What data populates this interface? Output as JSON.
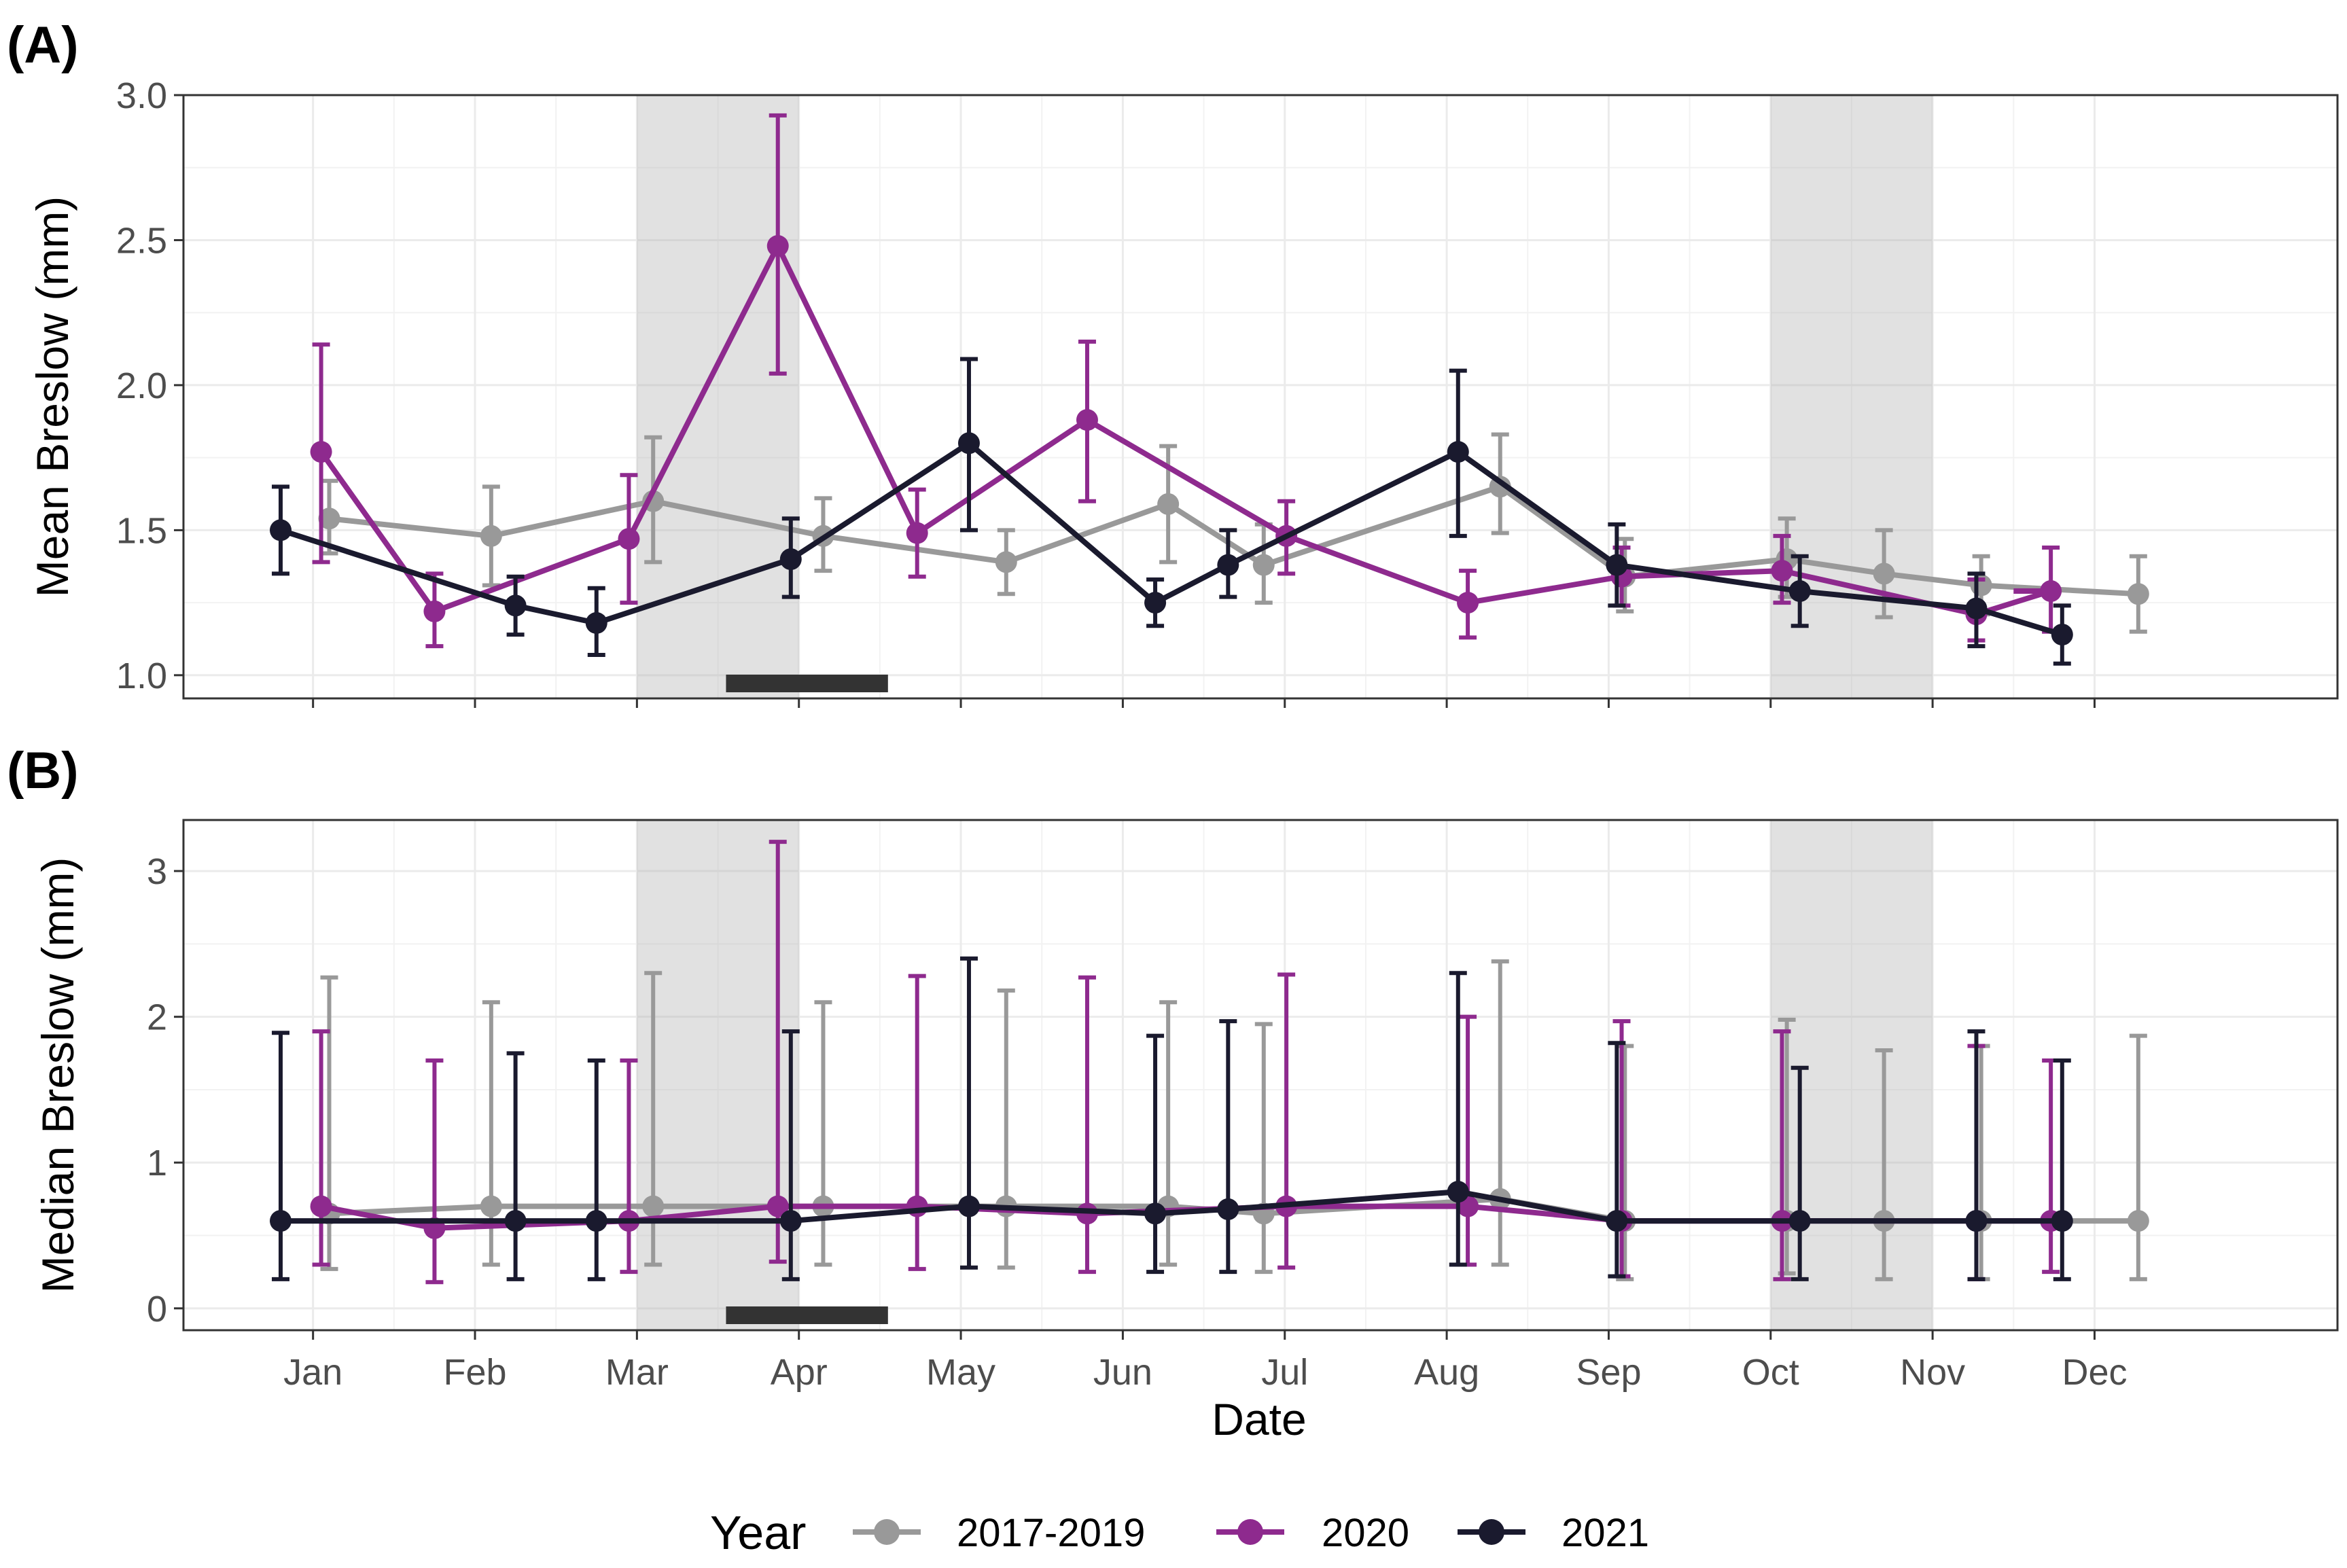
{
  "chart_data": {
    "type": "line",
    "xlabel": "Date",
    "legend": {
      "title": "Year",
      "position": "bottom"
    },
    "months": [
      "Jan",
      "Feb",
      "Mar",
      "Apr",
      "May",
      "Jun",
      "Jul",
      "Aug",
      "Sep",
      "Oct",
      "Nov",
      "Dec"
    ],
    "x_range": [
      -0.8,
      12.5
    ],
    "shaded_regions": [
      [
        2.0,
        3.0
      ],
      [
        9.0,
        10.0
      ]
    ],
    "period_bar": [
      2.55,
      3.55
    ],
    "colors": {
      "2017-2019": "#999999",
      "2020": "#8e2a8e",
      "2021": "#1a1a2e"
    },
    "panels": [
      {
        "label": "(A)",
        "ylabel": "Mean Breslow (mm)",
        "ylim": [
          0.92,
          3.0
        ],
        "yticks": [
          1.0,
          1.5,
          2.0,
          2.5,
          3.0
        ],
        "ytick_labels": [
          "1.0",
          "1.5",
          "2.0",
          "2.5",
          "3.0"
        ],
        "series": [
          {
            "name": "2017-2019",
            "x": [
              0.1,
              1.1,
              2.1,
              3.15,
              4.28,
              5.28,
              5.87,
              7.33,
              8.1,
              9.1,
              9.7,
              10.3,
              11.27
            ],
            "y": [
              1.54,
              1.48,
              1.6,
              1.48,
              1.39,
              1.59,
              1.38,
              1.65,
              1.34,
              1.4,
              1.35,
              1.31,
              1.28
            ],
            "lo": [
              1.42,
              1.31,
              1.39,
              1.36,
              1.28,
              1.39,
              1.25,
              1.49,
              1.22,
              1.27,
              1.2,
              1.21,
              1.15
            ],
            "hi": [
              1.67,
              1.65,
              1.82,
              1.61,
              1.5,
              1.79,
              1.52,
              1.83,
              1.47,
              1.54,
              1.5,
              1.41,
              1.41
            ]
          },
          {
            "name": "2020",
            "x": [
              0.05,
              0.75,
              1.95,
              2.87,
              3.73,
              4.78,
              6.01,
              7.13,
              8.08,
              9.07,
              10.27,
              10.73
            ],
            "y": [
              1.77,
              1.22,
              1.47,
              2.48,
              1.49,
              1.88,
              1.48,
              1.25,
              1.34,
              1.36,
              1.21,
              1.29
            ],
            "lo": [
              1.39,
              1.1,
              1.25,
              2.04,
              1.34,
              1.6,
              1.35,
              1.13,
              1.24,
              1.25,
              1.12,
              1.15
            ],
            "hi": [
              2.14,
              1.35,
              1.69,
              2.93,
              1.64,
              2.15,
              1.6,
              1.36,
              1.44,
              1.48,
              1.33,
              1.44
            ],
            "end_x": 10.5
          },
          {
            "name": "2021",
            "x": [
              -0.2,
              1.25,
              1.75,
              2.95,
              4.05,
              5.2,
              5.65,
              7.07,
              8.05,
              9.18,
              10.27,
              10.8
            ],
            "y": [
              1.5,
              1.24,
              1.18,
              1.4,
              1.8,
              1.25,
              1.38,
              1.77,
              1.38,
              1.29,
              1.23,
              1.14
            ],
            "lo": [
              1.35,
              1.14,
              1.07,
              1.27,
              1.5,
              1.17,
              1.27,
              1.48,
              1.24,
              1.17,
              1.1,
              1.04
            ],
            "hi": [
              1.65,
              1.34,
              1.3,
              1.54,
              2.09,
              1.33,
              1.5,
              2.05,
              1.52,
              1.41,
              1.35,
              1.24
            ]
          }
        ]
      },
      {
        "label": "(B)",
        "ylabel": "Median Breslow (mm)",
        "ylim": [
          -0.15,
          3.35
        ],
        "yticks": [
          0,
          1,
          2,
          3
        ],
        "ytick_labels": [
          "0",
          "1",
          "2",
          "3"
        ],
        "series": [
          {
            "name": "2017-2019",
            "x": [
              0.1,
              1.1,
              2.1,
              3.15,
              4.28,
              5.28,
              5.87,
              7.33,
              8.1,
              9.1,
              9.7,
              10.3,
              11.27
            ],
            "y": [
              0.65,
              0.7,
              0.7,
              0.7,
              0.7,
              0.7,
              0.65,
              0.75,
              0.6,
              0.6,
              0.6,
              0.6,
              0.6
            ],
            "lo": [
              0.27,
              0.3,
              0.3,
              0.3,
              0.28,
              0.3,
              0.25,
              0.3,
              0.2,
              0.24,
              0.2,
              0.2,
              0.2
            ],
            "hi": [
              2.27,
              2.1,
              2.3,
              2.1,
              2.18,
              2.1,
              1.95,
              2.38,
              1.8,
              1.98,
              1.77,
              1.8,
              1.87
            ]
          },
          {
            "name": "2020",
            "x": [
              0.05,
              0.75,
              1.95,
              2.87,
              3.73,
              4.78,
              6.01,
              7.13,
              8.08,
              9.07,
              10.27,
              10.73
            ],
            "y": [
              0.7,
              0.55,
              0.6,
              0.7,
              0.7,
              0.65,
              0.7,
              0.7,
              0.6,
              0.6,
              0.6,
              0.6
            ],
            "lo": [
              0.3,
              0.18,
              0.25,
              0.32,
              0.27,
              0.25,
              0.28,
              0.3,
              0.22,
              0.2,
              0.2,
              0.25
            ],
            "hi": [
              1.9,
              1.7,
              1.7,
              3.2,
              2.28,
              2.27,
              2.29,
              2.0,
              1.97,
              1.9,
              1.8,
              1.7
            ],
            "end_x": 10.5
          },
          {
            "name": "2021",
            "x": [
              -0.2,
              1.25,
              1.75,
              2.95,
              4.05,
              5.2,
              5.65,
              7.07,
              8.05,
              9.18,
              10.27,
              10.8
            ],
            "y": [
              0.6,
              0.6,
              0.6,
              0.6,
              0.7,
              0.65,
              0.68,
              0.8,
              0.6,
              0.6,
              0.6,
              0.6
            ],
            "lo": [
              0.2,
              0.2,
              0.2,
              0.2,
              0.28,
              0.25,
              0.25,
              0.3,
              0.22,
              0.2,
              0.2,
              0.2
            ],
            "hi": [
              1.89,
              1.75,
              1.7,
              1.9,
              2.4,
              1.87,
              1.97,
              2.3,
              1.82,
              1.65,
              1.9,
              1.7
            ]
          }
        ]
      }
    ]
  }
}
